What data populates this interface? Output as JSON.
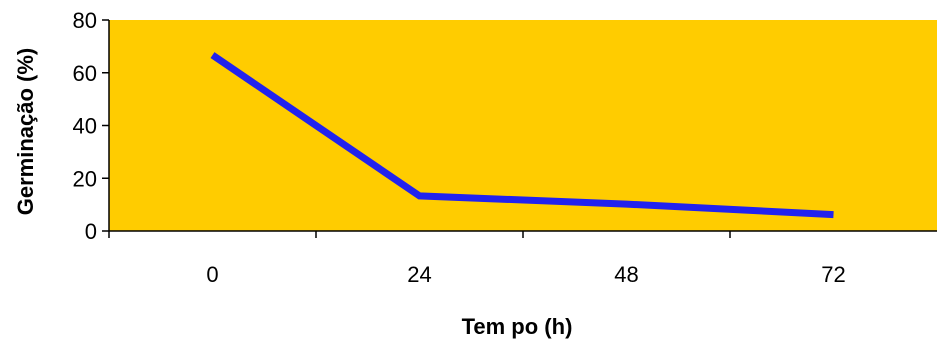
{
  "chart_data": {
    "type": "line",
    "title": "",
    "xlabel": "Tem po (h)",
    "ylabel": "Germinação (%)",
    "categories": [
      "0",
      "24",
      "48",
      "72"
    ],
    "series": [
      {
        "values": [
          66.7,
          13.3,
          10.2,
          6.2
        ]
      }
    ],
    "ylim": [
      0,
      80
    ],
    "yticks": [
      0,
      20,
      40,
      60,
      80
    ],
    "grid": false,
    "legend": "none",
    "colors": {
      "plot_background": "#FFCC00",
      "line": "#2222EE",
      "axis": "#000000"
    }
  }
}
